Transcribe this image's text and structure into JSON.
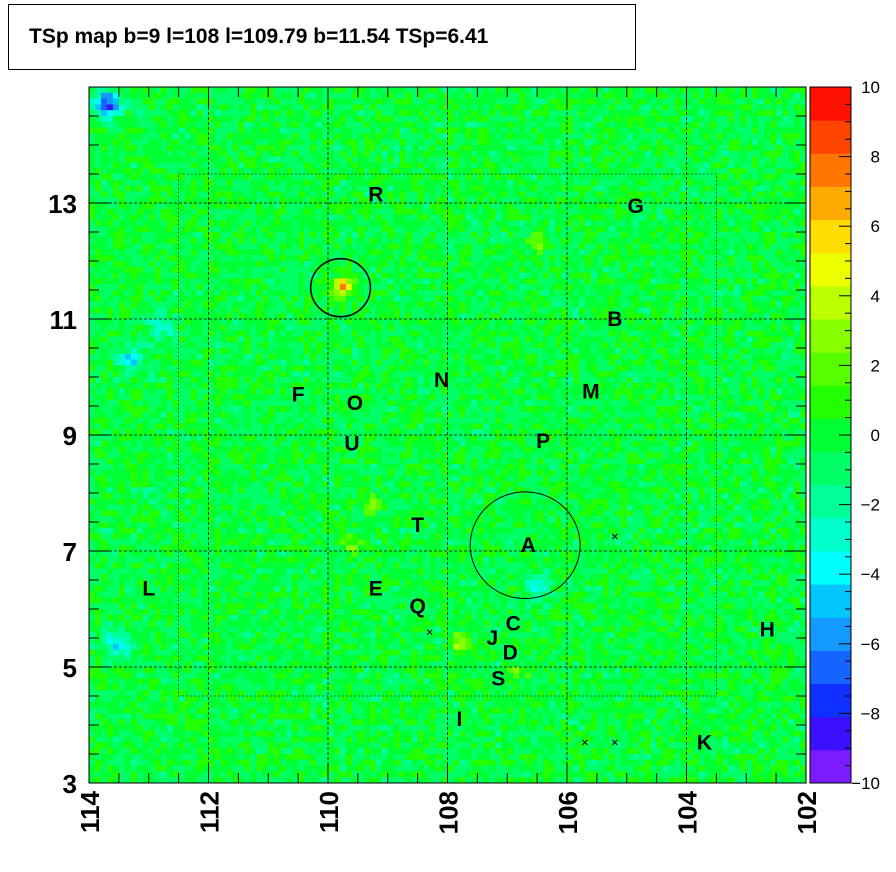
{
  "chart_data": {
    "type": "heatmap",
    "title": "TSp map b=9 l=108 l=109.79 b=11.54 TSp=6.41",
    "xlabel": "",
    "ylabel": "",
    "x_axis": {
      "min": 114,
      "max": 102,
      "reversed": true,
      "ticks": [
        "114",
        "112",
        "110",
        "108",
        "106",
        "104",
        "102"
      ]
    },
    "y_axis": {
      "min": 3,
      "max": 15,
      "ticks": [
        "3",
        "5",
        "7",
        "9",
        "11",
        "13"
      ]
    },
    "colorbar": {
      "min": -10,
      "max": 10,
      "ticks": [
        "10",
        "8",
        "6",
        "4",
        "2",
        "0",
        "−2",
        "−4",
        "−6",
        "−8",
        "−10"
      ],
      "colors": [
        "#7a1cff",
        "#3b10ff",
        "#1030ff",
        "#1464ff",
        "#149aff",
        "#00c8ff",
        "#00ffff",
        "#00ffcc",
        "#00ff99",
        "#00ff66",
        "#00ff33",
        "#22ff00",
        "#55ff00",
        "#88ff00",
        "#bbff00",
        "#eeff00",
        "#ffdd00",
        "#ffaa00",
        "#ff7700",
        "#ff4400",
        "#ff1100"
      ]
    },
    "grid": true,
    "grid_lines": {
      "l": [
        112,
        110,
        108,
        106,
        104
      ],
      "b": [
        5,
        7,
        9,
        11,
        13
      ]
    },
    "circles": [
      {
        "l": 109.79,
        "b": 11.54,
        "radius_deg": 0.5
      },
      {
        "l": 106.7,
        "b": 7.1,
        "radius_deg": 0.92
      }
    ],
    "hotspots": [
      {
        "l": 109.75,
        "b": 11.55,
        "value": 6.41
      },
      {
        "l": 107.8,
        "b": 5.4,
        "value": 3.5
      },
      {
        "l": 106.5,
        "b": 12.3,
        "value": 2.8
      },
      {
        "l": 109.3,
        "b": 7.8,
        "value": 2.5
      },
      {
        "l": 109.6,
        "b": 7.1,
        "value": 2.7
      },
      {
        "l": 106.8,
        "b": 4.9,
        "value": 2.2
      }
    ],
    "coldspots": [
      {
        "l": 113.7,
        "b": 14.7,
        "value": -8
      },
      {
        "l": 113.3,
        "b": 10.3,
        "value": -4
      },
      {
        "l": 113.5,
        "b": 5.4,
        "value": -4
      },
      {
        "l": 106.5,
        "b": 6.4,
        "value": -3
      },
      {
        "l": 112.8,
        "b": 10.9,
        "value": -3
      }
    ],
    "markers": [
      {
        "l": 105.2,
        "b": 7.25
      },
      {
        "l": 108.3,
        "b": 5.6
      },
      {
        "l": 105.7,
        "b": 3.7
      },
      {
        "l": 105.2,
        "b": 3.7
      }
    ],
    "annotations": [
      {
        "text": "R",
        "l": 109.2,
        "b": 13.15
      },
      {
        "text": "G",
        "l": 104.85,
        "b": 12.95
      },
      {
        "text": "B",
        "l": 105.2,
        "b": 11.0
      },
      {
        "text": "N",
        "l": 108.1,
        "b": 9.95
      },
      {
        "text": "M",
        "l": 105.6,
        "b": 9.75
      },
      {
        "text": "F",
        "l": 110.5,
        "b": 9.7
      },
      {
        "text": "O",
        "l": 109.55,
        "b": 9.55
      },
      {
        "text": "U",
        "l": 109.6,
        "b": 8.85
      },
      {
        "text": "P",
        "l": 106.4,
        "b": 8.9
      },
      {
        "text": "T",
        "l": 108.5,
        "b": 7.45
      },
      {
        "text": "A",
        "l": 106.65,
        "b": 7.1
      },
      {
        "text": "L",
        "l": 113.0,
        "b": 6.35
      },
      {
        "text": "E",
        "l": 109.2,
        "b": 6.35
      },
      {
        "text": "Q",
        "l": 108.5,
        "b": 6.05
      },
      {
        "text": "C",
        "l": 106.9,
        "b": 5.75
      },
      {
        "text": "J",
        "l": 107.25,
        "b": 5.5
      },
      {
        "text": "D",
        "l": 106.95,
        "b": 5.25
      },
      {
        "text": "H",
        "l": 102.65,
        "b": 5.65
      },
      {
        "text": "S",
        "l": 107.15,
        "b": 4.8
      },
      {
        "text": "I",
        "l": 107.8,
        "b": 4.1
      },
      {
        "text": "K",
        "l": 103.7,
        "b": 3.7
      }
    ]
  }
}
